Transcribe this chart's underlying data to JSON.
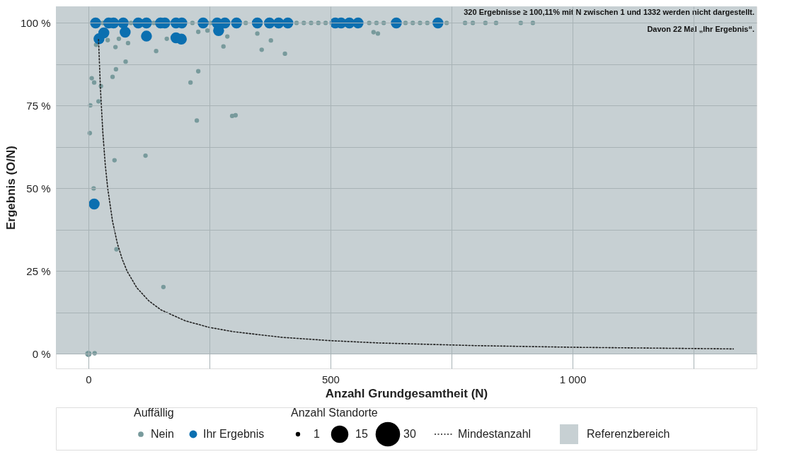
{
  "chart_data": {
    "type": "bubble",
    "xlabel": "Anzahl Grundgesamtheit (N)",
    "ylabel": "Ergebnis (O/N)",
    "legend_title": "Auffällig",
    "legend": "bottom",
    "grid": true,
    "xlim": [
      -67,
      1380
    ],
    "ylim": [
      -4.4,
      105
    ],
    "xticks": [
      0,
      {
        "value": 250,
        "label": null
      },
      500,
      {
        "value": 750,
        "label": null
      },
      {
        "value": 1000,
        "label": "1 000"
      },
      {
        "value": 1250,
        "label": null
      }
    ],
    "yticks": [
      {
        "value": 0,
        "label": "0 %"
      },
      {
        "value": 12.5,
        "label": null
      },
      {
        "value": 25,
        "label": "25 %"
      },
      {
        "value": 37.5,
        "label": null
      },
      {
        "value": 50,
        "label": "50 %"
      },
      {
        "value": 62.5,
        "label": null
      },
      {
        "value": 75,
        "label": "75 %"
      },
      {
        "value": 87.5,
        "label": null
      },
      {
        "value": 100,
        "label": "100 %"
      }
    ],
    "size_legend": [
      1,
      15,
      30
    ],
    "annotations": [
      "Anzahl Standorte",
      "320 Ergebnisse ≥ 100,11% mit N zwischen 1 und 1332 werden nicht dargestellt.",
      "Davon 22 Mal „Ihr Ergebnis“."
    ],
    "bands": [
      {
        "axis": "y",
        "from": 0,
        "to": 105,
        "label": "Referenzbereich",
        "color": "#c7d0d3"
      }
    ],
    "series": [
      {
        "name": "Nein",
        "color": "#789a9c",
        "x": [
          30,
          88,
          135,
          215,
          252,
          325,
          430,
          445,
          460,
          475,
          490,
          580,
          595,
          610,
          655,
          670,
          685,
          700,
          740,
          778,
          794,
          820,
          842,
          893,
          918,
          589,
          598,
          16,
          40,
          63,
          56,
          82,
          140,
          162,
          227,
          246,
          287,
          279,
          349,
          358,
          377,
          406,
          77,
          57,
          50,
          7,
          12,
          26,
          227,
          211,
          21,
          4,
          224,
          297,
          304,
          3,
          54,
          118,
          11,
          58,
          155,
          13,
          0
        ],
        "values": [
          100,
          100,
          100,
          100,
          100,
          100,
          100,
          100,
          100,
          100,
          100,
          100,
          100,
          100,
          100,
          100,
          100,
          100,
          100,
          100,
          100,
          100,
          100,
          100,
          100,
          97.2,
          96.8,
          93.4,
          94.8,
          95.2,
          92.7,
          93.9,
          91.5,
          95.2,
          97.3,
          97.7,
          95.9,
          92.9,
          96.8,
          91.9,
          94.7,
          90.7,
          88.3,
          86,
          83.7,
          83.3,
          82,
          80.9,
          85.4,
          82,
          76.3,
          75.1,
          70.5,
          71.9,
          72.1,
          66.7,
          58.5,
          59.9,
          50,
          31.6,
          20.2,
          0.2,
          0
        ],
        "sizes": [
          1,
          1,
          1,
          1,
          1,
          1,
          1,
          1,
          1,
          1,
          1,
          1,
          1,
          1,
          1,
          1,
          1,
          1,
          1,
          1,
          1,
          1,
          1,
          1,
          1,
          1,
          1,
          1,
          1,
          1,
          1,
          1,
          1,
          1,
          1,
          1,
          1,
          1,
          1,
          1,
          1,
          1,
          1,
          1,
          1,
          1,
          1,
          1,
          1,
          1,
          1,
          1,
          1,
          1,
          1,
          1,
          1,
          1,
          1,
          1,
          1,
          1,
          2
        ]
      },
      {
        "name": "Ihr Ergebnis",
        "color": "#0b6fb0",
        "x": [
          15,
          42,
          52,
          72,
          103,
          120,
          149,
          158,
          181,
          193,
          237,
          266,
          282,
          306,
          349,
          374,
          393,
          412,
          510,
          522,
          539,
          557,
          636,
          722,
          22,
          32,
          76,
          120,
          181,
          192,
          269,
          12
        ],
        "values": [
          100,
          100,
          100,
          100,
          100,
          100,
          100,
          100,
          100,
          100,
          100,
          100,
          100,
          100,
          100,
          100,
          100,
          100,
          100,
          100,
          100,
          100,
          100,
          100,
          95.2,
          97,
          97.2,
          96,
          95.5,
          95.1,
          97.7,
          45.3
        ],
        "sizes": [
          6,
          6,
          6,
          6,
          6,
          6,
          6,
          6,
          6,
          6,
          6,
          6,
          6,
          6,
          6,
          6,
          6,
          6,
          6,
          6,
          6,
          6,
          6,
          6,
          6,
          6,
          6,
          6,
          6,
          6,
          6,
          6
        ]
      },
      {
        "name": "Mindestanzahl",
        "type": "line",
        "color": "#222222",
        "line_style": "dotted",
        "x": [
          21,
          25,
          30,
          35,
          40,
          50,
          60,
          70,
          80,
          100,
          125,
          150,
          200,
          250,
          300,
          400,
          500,
          600,
          800,
          1000,
          1332
        ],
        "values": [
          95,
          80,
          66.7,
          57,
          50,
          40,
          33.3,
          28.6,
          25,
          20,
          16,
          13.3,
          10,
          8,
          6.7,
          5,
          4,
          3.3,
          2.5,
          2,
          1.5
        ]
      }
    ]
  }
}
